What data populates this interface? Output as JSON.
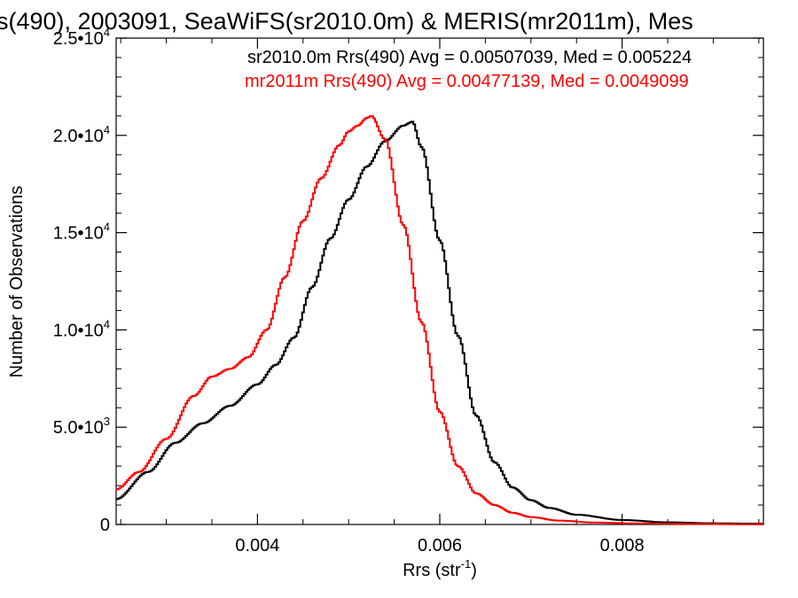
{
  "chart_data": {
    "type": "line",
    "title": "s(490), 2003091, SeaWiFS(sr2010.0m) & MERIS(mr2011m), Mes",
    "xlabel": "Rrs (str",
    "xlabel_sup": "-1",
    "xlabel_tail": ")",
    "ylabel": "Number of Observations",
    "xlim": [
      0.00245,
      0.00955
    ],
    "ylim": [
      0,
      25000
    ],
    "x_ticks": [
      {
        "value": 0.004,
        "label": "0.004"
      },
      {
        "value": 0.006,
        "label": "0.006"
      },
      {
        "value": 0.008,
        "label": "0.008"
      }
    ],
    "y_ticks": [
      {
        "value": 0,
        "label": "0",
        "exp": ""
      },
      {
        "value": 5000,
        "label": "5.0•10",
        "exp": "3"
      },
      {
        "value": 10000,
        "label": "1.0•10",
        "exp": "4"
      },
      {
        "value": 15000,
        "label": "1.5•10",
        "exp": "4"
      },
      {
        "value": 20000,
        "label": "2.0•10",
        "exp": "4"
      },
      {
        "value": 25000,
        "label": "2.5•10",
        "exp": "4"
      }
    ],
    "legend": [
      {
        "text": "sr2010.0m Rrs(490) Avg = 0.00507039, Med = 0.005224",
        "color": "#000000"
      },
      {
        "text": "mr2011m Rrs(490) Avg = 0.00477139, Med = 0.0049099",
        "color": "#ff0000"
      }
    ],
    "series": [
      {
        "color": "#000000",
        "x": [
          0.00245,
          0.0028,
          0.0031,
          0.0034,
          0.0037,
          0.004,
          0.0042,
          0.0044,
          0.0046,
          0.0048,
          0.005,
          0.0052,
          0.0054,
          0.0056,
          0.0057,
          0.0058,
          0.006,
          0.0062,
          0.0064,
          0.0066,
          0.0068,
          0.007,
          0.0072,
          0.0075,
          0.008,
          0.0085,
          0.009,
          0.0095
        ],
        "y": [
          1300,
          2700,
          4200,
          5200,
          6100,
          7200,
          8200,
          9600,
          12200,
          14700,
          16700,
          18400,
          19700,
          20500,
          20700,
          19400,
          14600,
          9700,
          5600,
          3200,
          1900,
          1250,
          850,
          500,
          230,
          110,
          60,
          40
        ]
      },
      {
        "color": "#ff0000",
        "x": [
          0.00245,
          0.0027,
          0.003,
          0.0033,
          0.0035,
          0.0037,
          0.0039,
          0.0041,
          0.0043,
          0.0045,
          0.0047,
          0.0049,
          0.005,
          0.0051,
          0.0052,
          0.00525,
          0.0054,
          0.0056,
          0.0058,
          0.006,
          0.0062,
          0.0064,
          0.0066,
          0.0068,
          0.007,
          0.0073,
          0.0077,
          0.0082,
          0.0088,
          0.0095
        ],
        "y": [
          1800,
          2700,
          4400,
          6600,
          7600,
          8000,
          8600,
          10000,
          12700,
          15600,
          17800,
          19500,
          20200,
          20500,
          20900,
          21000,
          19800,
          15400,
          10400,
          5800,
          3000,
          1600,
          1000,
          600,
          380,
          200,
          100,
          50,
          25,
          10
        ]
      }
    ]
  }
}
